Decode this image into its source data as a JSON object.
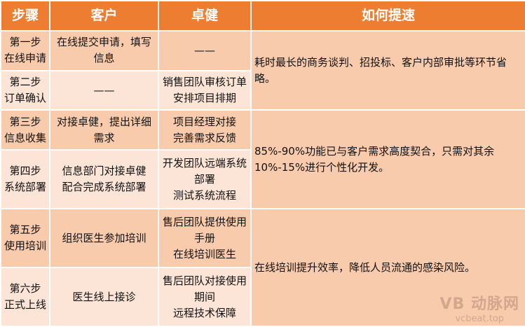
{
  "header": {
    "step": "步骤",
    "client": "客户",
    "zhuojian": "卓健",
    "speedup": "如何提速"
  },
  "rows": [
    {
      "step": "第一步",
      "step_name": "在线申请",
      "client": "在线提交申请，填写信息",
      "zhuojian": "——"
    },
    {
      "step": "第二步",
      "step_name": "订单确认",
      "client": "——",
      "zhuojian": "销售团队审核订单\n安排项目排期"
    },
    {
      "step": "第三步",
      "step_name": "信息收集",
      "client": "对接卓健，提出详细需求",
      "zhuojian": "项目经理对接\n完善需求反馈"
    },
    {
      "step": "第四步",
      "step_name": "系统部署",
      "client": "信息部门对接卓健\n配合完成系统部署",
      "zhuojian": "开发团队远端系统部署\n测试系统流程"
    },
    {
      "step": "第五步",
      "step_name": "使用培训",
      "client": "组织医生参加培训",
      "zhuojian": "售后团队提供使用手册\n在线培训医生"
    },
    {
      "step": "第六步",
      "step_name": "正式上线",
      "client": "医生线上接诊",
      "zhuojian": "售后团队对接使用期间\n远程技术保障"
    }
  ],
  "speedup": [
    "耗时最长的商务谈判、招投标、客户内部审批等环节省略。",
    "85%-90%功能已与客户需求高度契合，只需对其余10%-15%进行个性化开发。",
    "在线培训提升效率，降低人员流通的感染风险。"
  ],
  "watermark": {
    "logo": "VB 动脉网",
    "url": "vcbeat.top"
  },
  "colors": {
    "header": "#ed7d31",
    "row_dark": "#f8cbad",
    "row_light": "#fce4d6"
  }
}
